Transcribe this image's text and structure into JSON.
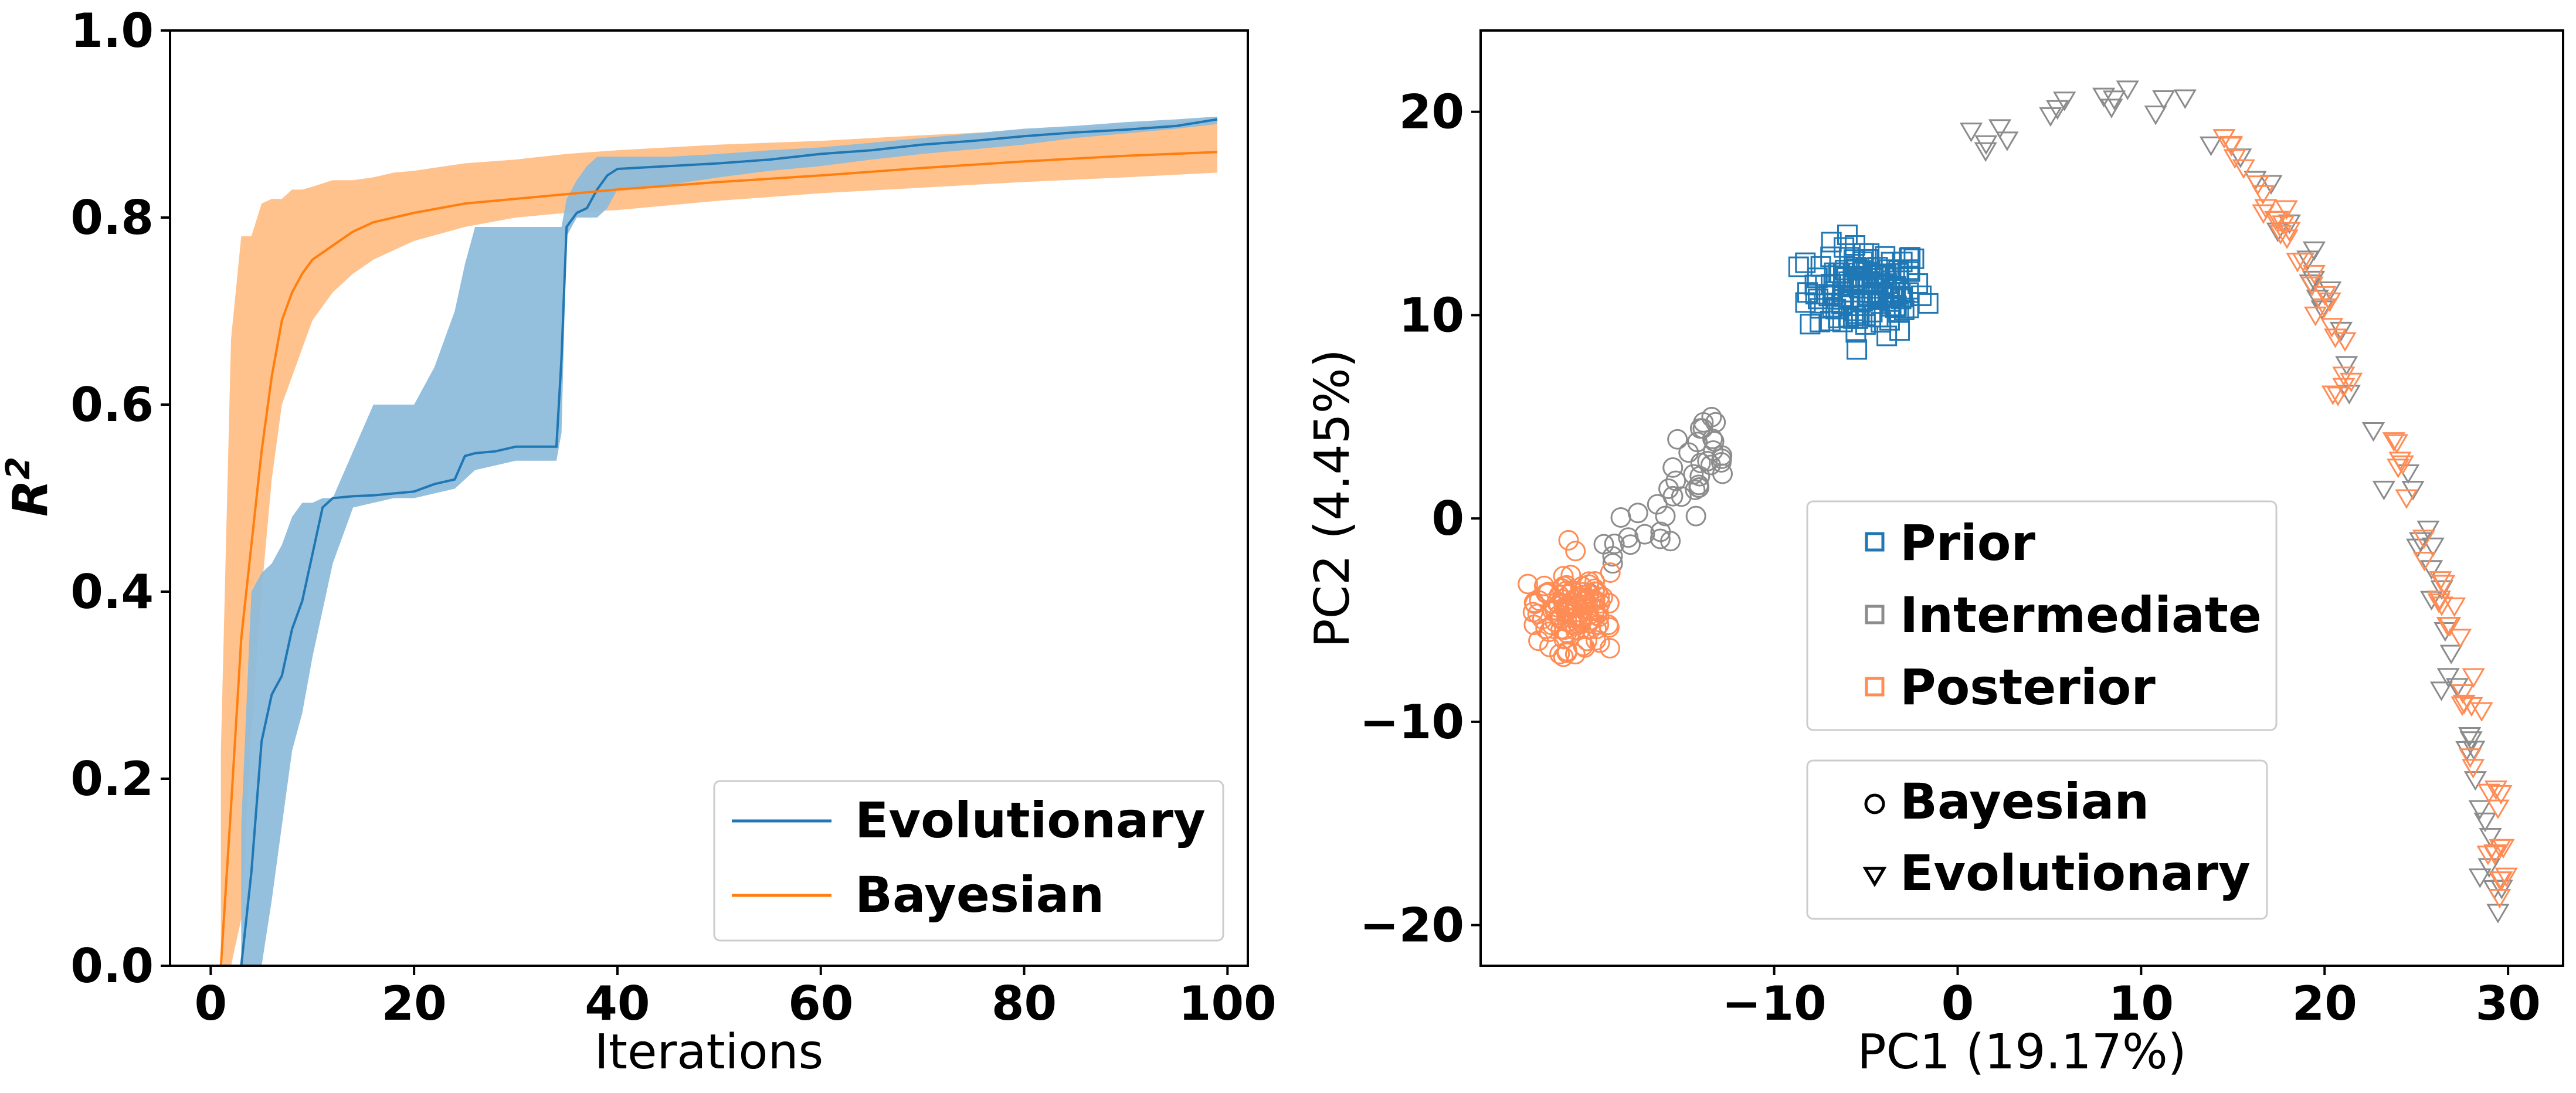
{
  "colors": {
    "evolutionary": "#1f77b4",
    "bayesian": "#ff7f0e",
    "evolutionary_band": "#8ebcdb",
    "bayesian_band": "#ffbf87",
    "prior": "#1f77b4",
    "intermediate": "#8c8c8c",
    "posterior": "#ff8c55"
  },
  "chart_data": [
    {
      "type": "line",
      "xlabel": "Iterations",
      "ylabel": "R",
      "ylabel_superscript": "2",
      "xlim": [
        -4,
        102
      ],
      "ylim": [
        0,
        1
      ],
      "xticks": [
        "0",
        "20",
        "40",
        "60",
        "80",
        "100"
      ],
      "xtick_values": [
        0,
        20,
        40,
        60,
        80,
        100
      ],
      "yticks": [
        "0.0",
        "0.2",
        "0.4",
        "0.6",
        "0.8",
        "1.0"
      ],
      "ytick_values": [
        0,
        0.2,
        0.4,
        0.6,
        0.8,
        1.0
      ],
      "legend_position": "bottom-right",
      "series": [
        {
          "name": "Evolutionary",
          "color": "#1f77b4",
          "band_color": "#8ebcdb",
          "x": [
            3,
            4,
            5,
            6,
            7,
            8,
            9,
            10,
            11,
            12,
            14,
            16,
            18,
            20,
            22,
            24,
            25,
            26,
            28,
            30,
            32,
            34,
            34.5,
            35,
            36,
            37,
            38,
            39,
            40,
            45,
            50,
            55,
            60,
            65,
            70,
            75,
            80,
            85,
            90,
            95,
            99
          ],
          "mean": [
            0.0,
            0.1,
            0.24,
            0.29,
            0.31,
            0.36,
            0.39,
            0.44,
            0.49,
            0.5,
            0.502,
            0.503,
            0.505,
            0.507,
            0.515,
            0.52,
            0.545,
            0.548,
            0.55,
            0.555,
            0.555,
            0.555,
            0.65,
            0.79,
            0.805,
            0.81,
            0.83,
            0.845,
            0.852,
            0.855,
            0.858,
            0.862,
            0.868,
            0.872,
            0.878,
            0.882,
            0.887,
            0.891,
            0.894,
            0.898,
            0.905
          ],
          "upper": [
            0.15,
            0.4,
            0.42,
            0.43,
            0.45,
            0.48,
            0.495,
            0.495,
            0.5,
            0.5,
            0.55,
            0.6,
            0.6,
            0.6,
            0.64,
            0.7,
            0.75,
            0.79,
            0.79,
            0.79,
            0.79,
            0.79,
            0.79,
            0.82,
            0.84,
            0.855,
            0.865,
            0.865,
            0.865,
            0.865,
            0.868,
            0.872,
            0.875,
            0.88,
            0.885,
            0.89,
            0.895,
            0.898,
            0.902,
            0.905,
            0.908
          ],
          "lower": [
            0.0,
            0.0,
            0.0,
            0.07,
            0.15,
            0.23,
            0.27,
            0.33,
            0.38,
            0.43,
            0.49,
            0.495,
            0.5,
            0.5,
            0.505,
            0.51,
            0.52,
            0.53,
            0.535,
            0.54,
            0.54,
            0.54,
            0.57,
            0.78,
            0.8,
            0.8,
            0.8,
            0.81,
            0.83,
            0.835,
            0.843,
            0.85,
            0.855,
            0.862,
            0.868,
            0.873,
            0.878,
            0.885,
            0.89,
            0.895,
            0.9
          ]
        },
        {
          "name": "Bayesian",
          "color": "#ff7f0e",
          "band_color": "#ffbf87",
          "x": [
            1,
            2,
            3,
            4,
            5,
            6,
            7,
            8,
            9,
            10,
            12,
            14,
            16,
            18,
            20,
            25,
            30,
            35,
            40,
            50,
            60,
            70,
            80,
            90,
            99
          ],
          "mean": [
            0.0,
            0.17,
            0.35,
            0.45,
            0.55,
            0.63,
            0.69,
            0.72,
            0.74,
            0.755,
            0.77,
            0.785,
            0.795,
            0.8,
            0.805,
            0.815,
            0.82,
            0.825,
            0.83,
            0.838,
            0.845,
            0.853,
            0.86,
            0.866,
            0.87
          ],
          "upper": [
            0.23,
            0.67,
            0.78,
            0.78,
            0.815,
            0.82,
            0.82,
            0.83,
            0.83,
            0.833,
            0.84,
            0.84,
            0.843,
            0.848,
            0.85,
            0.858,
            0.862,
            0.868,
            0.872,
            0.878,
            0.882,
            0.888,
            0.893,
            0.898,
            0.905
          ],
          "lower": [
            0.0,
            0.0,
            0.05,
            0.25,
            0.4,
            0.52,
            0.6,
            0.63,
            0.66,
            0.69,
            0.72,
            0.74,
            0.755,
            0.765,
            0.775,
            0.79,
            0.8,
            0.805,
            0.808,
            0.818,
            0.826,
            0.832,
            0.838,
            0.843,
            0.848
          ]
        }
      ]
    },
    {
      "type": "scatter",
      "xlabel": "PC1 (19.17%)",
      "ylabel": "PC2 (4.45%)",
      "xlim": [
        -26,
        33
      ],
      "ylim": [
        -22,
        24
      ],
      "xticks": [
        "−10",
        "0",
        "10",
        "20",
        "30"
      ],
      "xtick_values": [
        -10,
        0,
        10,
        20,
        30
      ],
      "yticks": [
        "−20",
        "−10",
        "0",
        "10",
        "20"
      ],
      "ytick_values": [
        -20,
        -10,
        0,
        10,
        20
      ],
      "legend_position": "center",
      "legend_groups": [
        {
          "marker": "square",
          "entries": [
            {
              "label": "Prior",
              "color": "#1f77b4"
            },
            {
              "label": "Intermediate",
              "color": "#8c8c8c"
            },
            {
              "label": "Posterior",
              "color": "#ff8c55"
            }
          ]
        },
        {
          "marker": "shape",
          "entries": [
            {
              "label": "Bayesian",
              "shape": "circle"
            },
            {
              "label": "Evolutionary",
              "shape": "triangle"
            }
          ]
        }
      ],
      "clusters": [
        {
          "name": "Prior",
          "shape": "square",
          "color": "#1f77b4",
          "count": 130,
          "center": [
            -5,
            11.2
          ],
          "spread": [
            1.6,
            1.1
          ]
        },
        {
          "name": "Intermediate",
          "shape": "circle",
          "color": "#8c8c8c",
          "count": 45,
          "path": [
            [
              -19,
              -1.5
            ],
            [
              -16,
              0.5
            ],
            [
              -14,
              2.5
            ],
            [
              -13,
              3.8
            ]
          ],
          "jitter": 0.9
        },
        {
          "name": "Posterior",
          "shape": "circle",
          "color": "#ff8c55",
          "count": 110,
          "center": [
            -21,
            -4.5
          ],
          "spread": [
            1.0,
            0.9
          ]
        },
        {
          "name": "Intermediate",
          "shape": "triangle",
          "color": "#8c8c8c",
          "count": 60,
          "path": [
            [
              1,
              18.5
            ],
            [
              3,
              19.5
            ],
            [
              6,
              20.5
            ],
            [
              10,
              21
            ],
            [
              13,
              20
            ],
            [
              17,
              16
            ],
            [
              20,
              11
            ],
            [
              22,
              6
            ],
            [
              24,
              2
            ],
            [
              26,
              -3
            ],
            [
              27,
              -8
            ],
            [
              28,
              -12
            ],
            [
              29,
              -16
            ],
            [
              29.5,
              -19
            ]
          ],
          "jitter": 0.35
        },
        {
          "name": "Posterior",
          "shape": "triangle",
          "color": "#ff8c55",
          "count": 70,
          "path": [
            [
              14,
              19
            ],
            [
              16,
              17
            ],
            [
              18,
              14
            ],
            [
              19.5,
              11.5
            ],
            [
              21,
              7.5
            ],
            [
              22.5,
              4.5
            ],
            [
              24.5,
              2.5
            ],
            [
              26,
              -2.5
            ],
            [
              27,
              -6
            ],
            [
              28,
              -10
            ],
            [
              28.5,
              -13
            ],
            [
              29.3,
              -15.5
            ],
            [
              29.5,
              -19
            ]
          ],
          "jitter": 0.35
        }
      ]
    }
  ]
}
